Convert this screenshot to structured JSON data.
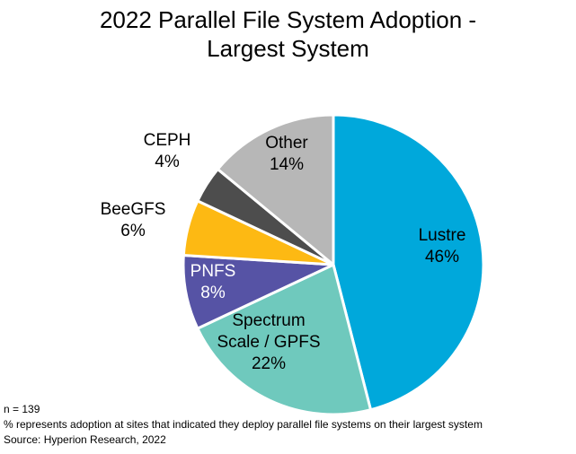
{
  "chart_data": {
    "type": "pie",
    "title_lines": [
      "2022 Parallel File System Adoption -",
      "Largest System"
    ],
    "slices": [
      {
        "label": "Lustre",
        "value": 46,
        "pct_label": "46%",
        "color": "#00a8db",
        "text_color": "#000000"
      },
      {
        "label": "Spectrum\nScale / GPFS",
        "value": 22,
        "pct_label": "22%",
        "color": "#6fc9bd",
        "text_color": "#000000"
      },
      {
        "label": "PNFS",
        "value": 8,
        "pct_label": "8%",
        "color": "#5653a5",
        "text_color": "#ffffff"
      },
      {
        "label": "BeeGFS",
        "value": 6,
        "pct_label": "6%",
        "color": "#fdb913",
        "text_color": "#000000"
      },
      {
        "label": "CEPH",
        "value": 4,
        "pct_label": "4%",
        "color": "#4d4d4d",
        "text_color": "#000000"
      },
      {
        "label": "Other",
        "value": 14,
        "pct_label": "14%",
        "color": "#b7b7b7",
        "text_color": "#000000"
      }
    ],
    "start_angle": "12 o'clock",
    "direction": "clockwise"
  },
  "notes": [
    "n = 139",
    "% represents adoption at sites that indicated they deploy parallel file systems on their largest system",
    "Source: Hyperion Research, 2022"
  ]
}
